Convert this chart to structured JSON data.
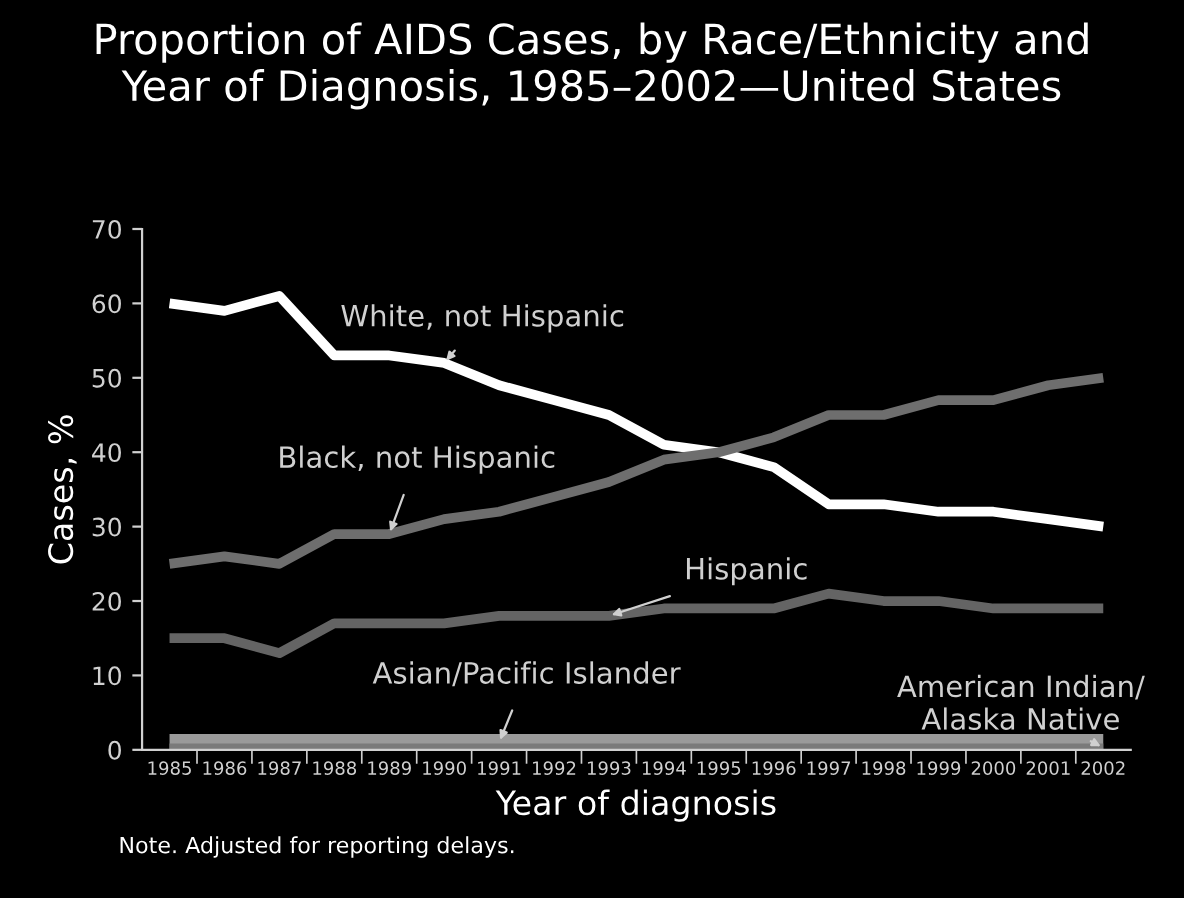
{
  "chart_data": {
    "type": "line",
    "title": "Proportion of AIDS Cases, by Race/Ethnicity and\nYear of Diagnosis, 1985–2002—United States",
    "xlabel": "Year of diagnosis",
    "ylabel": "Cases, %",
    "categories": [
      "1985",
      "1986",
      "1987",
      "1988",
      "1989",
      "1990",
      "1991",
      "1992",
      "1993",
      "1994",
      "1995",
      "1996",
      "1997",
      "1998",
      "1999",
      "2000",
      "2001",
      "2002"
    ],
    "series": [
      {
        "name": "White, not Hispanic",
        "color": "#ffffff",
        "values": [
          60,
          59,
          61,
          53,
          53,
          52,
          49,
          47,
          45,
          41,
          40,
          38,
          33,
          33,
          32,
          32,
          31,
          30
        ]
      },
      {
        "name": "Black, not Hispanic",
        "color": "#6e6e6e",
        "values": [
          25,
          26,
          25,
          29,
          29,
          31,
          32,
          34,
          36,
          39,
          40,
          42,
          45,
          45,
          47,
          47,
          49,
          50
        ]
      },
      {
        "name": "Hispanic",
        "color": "#646464",
        "values": [
          15,
          15,
          13,
          17,
          17,
          17,
          18,
          18,
          18,
          19,
          19,
          19,
          21,
          20,
          20,
          19,
          19,
          19
        ]
      },
      {
        "name": "Asian/Pacific Islander",
        "color": "#9a9a9a",
        "values": [
          1,
          1,
          1,
          1,
          1,
          1,
          1,
          1,
          1,
          1,
          1,
          1,
          1,
          1,
          1,
          1,
          1,
          1
        ]
      },
      {
        "name": "American Indian/\nAlaska Native",
        "color": "#7a7a7a",
        "values": [
          0.3,
          0.3,
          0.3,
          0.3,
          0.3,
          0.3,
          0.3,
          0.3,
          0.3,
          0.3,
          0.3,
          0.3,
          0.3,
          0.3,
          0.3,
          0.3,
          0.3,
          0.3
        ]
      }
    ],
    "ylim": [
      0,
      70
    ],
    "yticks": [
      0,
      10,
      20,
      30,
      40,
      50,
      60,
      70
    ],
    "grid": false,
    "legend": false,
    "marker": "none",
    "line_style": "solid",
    "annotations": [
      "Note. Adjusted for reporting delays."
    ]
  }
}
